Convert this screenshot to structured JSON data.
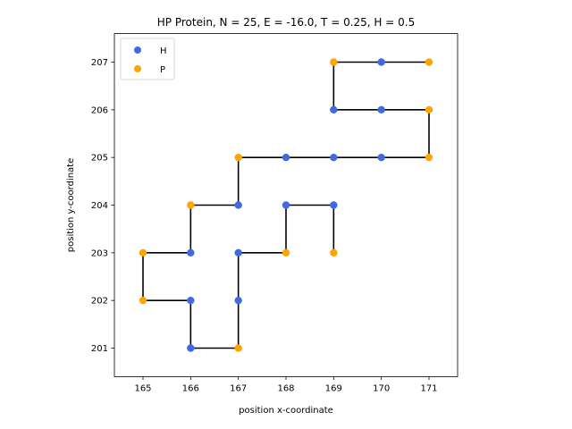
{
  "chart_data": {
    "type": "scatter",
    "title": "HP Protein, N = 25, E = -16.0, T = 0.25, H = 0.5",
    "xlabel": "position x-coordinate",
    "ylabel": "position y-coordinate",
    "xlim": [
      164.4,
      171.6
    ],
    "ylim": [
      200.4,
      207.6
    ],
    "x_ticks": [
      165,
      166,
      167,
      168,
      169,
      170,
      171
    ],
    "y_ticks": [
      201,
      202,
      203,
      204,
      205,
      206,
      207
    ],
    "grid": false,
    "legend": {
      "placement": "top-left"
    },
    "chain": {
      "line_color": "#000000",
      "points": [
        {
          "x": 169,
          "y": 203,
          "type": "P"
        },
        {
          "x": 169,
          "y": 204,
          "type": "H"
        },
        {
          "x": 168,
          "y": 204,
          "type": "H"
        },
        {
          "x": 168,
          "y": 203,
          "type": "P"
        },
        {
          "x": 167,
          "y": 203,
          "type": "H"
        },
        {
          "x": 167,
          "y": 202,
          "type": "H"
        },
        {
          "x": 167,
          "y": 201,
          "type": "P"
        },
        {
          "x": 166,
          "y": 201,
          "type": "H"
        },
        {
          "x": 166,
          "y": 202,
          "type": "H"
        },
        {
          "x": 165,
          "y": 202,
          "type": "P"
        },
        {
          "x": 165,
          "y": 203,
          "type": "P"
        },
        {
          "x": 166,
          "y": 203,
          "type": "H"
        },
        {
          "x": 166,
          "y": 204,
          "type": "P"
        },
        {
          "x": 167,
          "y": 204,
          "type": "H"
        },
        {
          "x": 167,
          "y": 205,
          "type": "P"
        },
        {
          "x": 168,
          "y": 205,
          "type": "H"
        },
        {
          "x": 169,
          "y": 205,
          "type": "H"
        },
        {
          "x": 170,
          "y": 205,
          "type": "H"
        },
        {
          "x": 171,
          "y": 205,
          "type": "P"
        },
        {
          "x": 171,
          "y": 206,
          "type": "P"
        },
        {
          "x": 170,
          "y": 206,
          "type": "H"
        },
        {
          "x": 169,
          "y": 206,
          "type": "H"
        },
        {
          "x": 169,
          "y": 207,
          "type": "P"
        },
        {
          "x": 170,
          "y": 207,
          "type": "H"
        },
        {
          "x": 171,
          "y": 207,
          "type": "P"
        }
      ]
    },
    "series": [
      {
        "name": "H",
        "color": "#4169e1"
      },
      {
        "name": "P",
        "color": "#ffa500"
      }
    ]
  }
}
